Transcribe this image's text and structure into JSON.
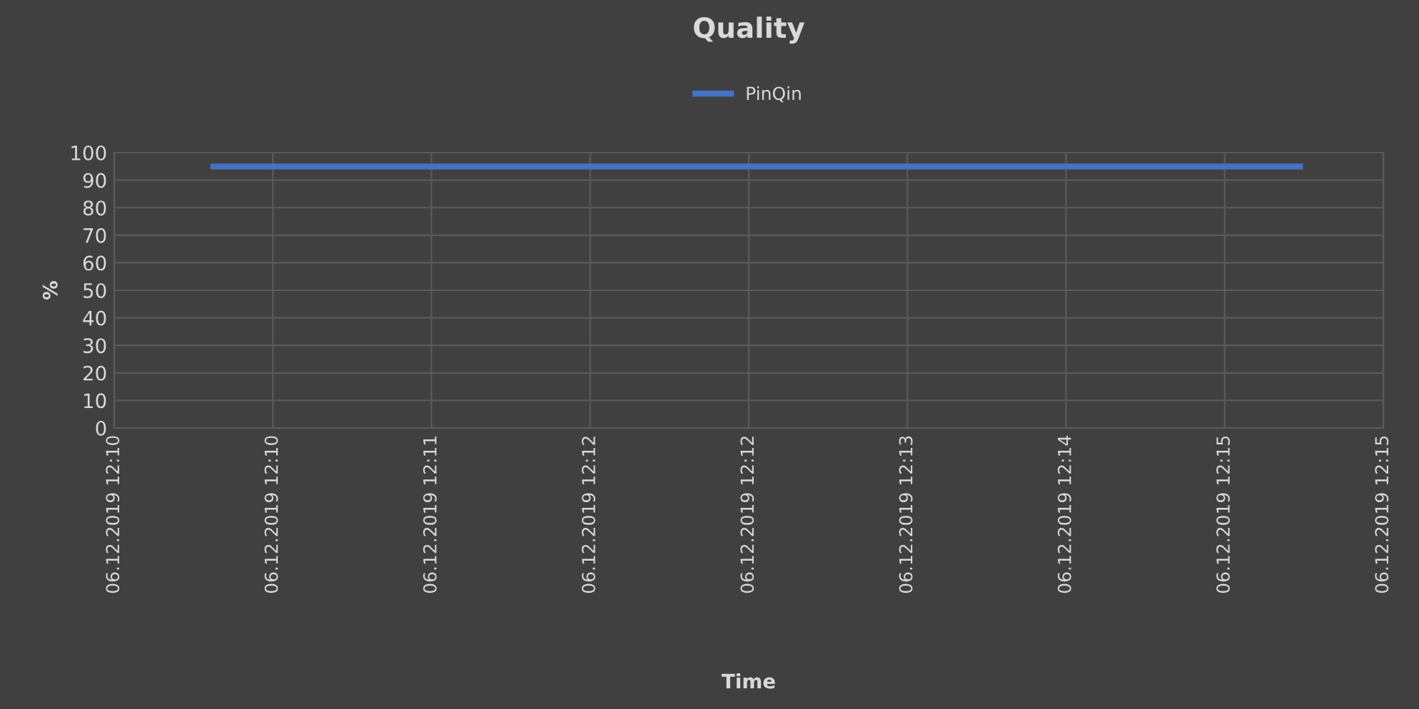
{
  "chart_data": {
    "type": "line",
    "title": "Quality",
    "xlabel": "Time",
    "ylabel": "%",
    "series": [
      {
        "name": "PinQin",
        "color": "#4472c4",
        "x": [
          "2019-12-06T12:10:25",
          "2019-12-06T12:14:59"
        ],
        "values": [
          95,
          95
        ]
      }
    ],
    "xlim": [
      "2019-12-06T12:10:00",
      "2019-12-06T12:15:20"
    ],
    "xticks": [
      {
        "value": "2019-12-06T12:10:00",
        "label": "06.12.2019 12:10"
      },
      {
        "value": "2019-12-06T12:10:40",
        "label": "06.12.2019 12:10"
      },
      {
        "value": "2019-12-06T12:11:20",
        "label": "06.12.2019 12:11"
      },
      {
        "value": "2019-12-06T12:12:00",
        "label": "06.12.2019 12:12"
      },
      {
        "value": "2019-12-06T12:12:40",
        "label": "06.12.2019 12:12"
      },
      {
        "value": "2019-12-06T12:13:20",
        "label": "06.12.2019 12:13"
      },
      {
        "value": "2019-12-06T12:14:00",
        "label": "06.12.2019 12:14"
      },
      {
        "value": "2019-12-06T12:14:40",
        "label": "06.12.2019 12:15"
      },
      {
        "value": "2019-12-06T12:15:20",
        "label": "06.12.2019 12:15"
      }
    ],
    "ylim": [
      0,
      100
    ],
    "yticks": [
      0,
      10,
      20,
      30,
      40,
      50,
      60,
      70,
      80,
      90,
      100
    ],
    "grid": true,
    "legend": "top",
    "marker": "none",
    "line_style": "solid"
  }
}
